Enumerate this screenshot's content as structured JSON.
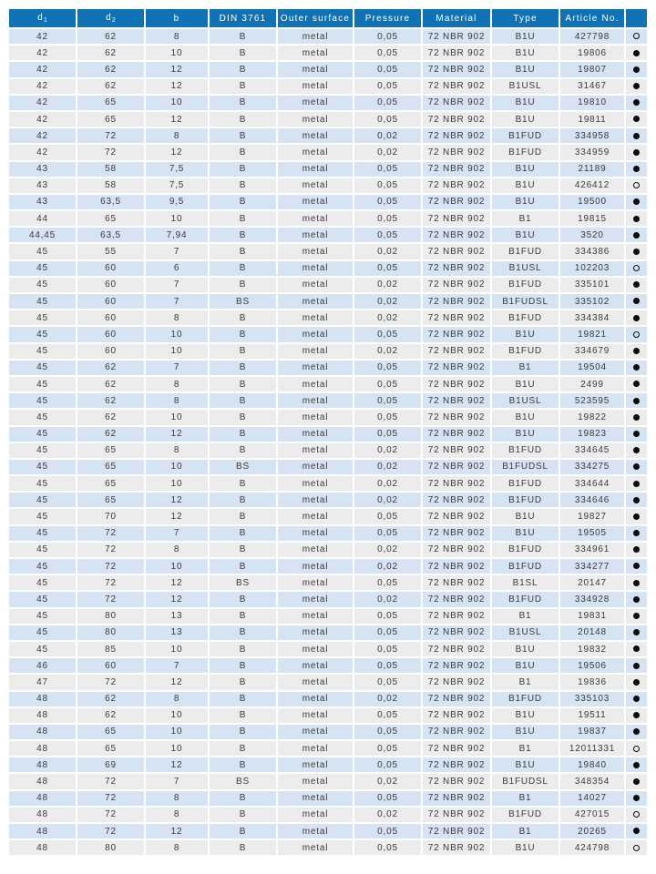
{
  "table": {
    "columns": [
      {
        "key": "d1",
        "label": "d",
        "sub": "1"
      },
      {
        "key": "d2",
        "label": "d",
        "sub": "2"
      },
      {
        "key": "b",
        "label": "b"
      },
      {
        "key": "din",
        "label": "DIN 3761"
      },
      {
        "key": "outer_surface",
        "label": "Outer surface"
      },
      {
        "key": "pressure",
        "label": "Pressure"
      },
      {
        "key": "material",
        "label": "Material"
      },
      {
        "key": "type",
        "label": "Type"
      },
      {
        "key": "article_no",
        "label": "Article No."
      },
      {
        "key": "availability",
        "label": ""
      }
    ],
    "rows": [
      {
        "cells": [
          "42",
          "62",
          "8",
          "B",
          "metal",
          "0,05",
          "72 NBR 902",
          "B1U",
          "427798"
        ],
        "dot": "empty"
      },
      {
        "cells": [
          "42",
          "62",
          "10",
          "B",
          "metal",
          "0,05",
          "72 NBR 902",
          "B1U",
          "19806"
        ],
        "dot": "filled"
      },
      {
        "cells": [
          "42",
          "62",
          "12",
          "B",
          "metal",
          "0,05",
          "72 NBR 902",
          "B1U",
          "19807"
        ],
        "dot": "filled"
      },
      {
        "cells": [
          "42",
          "62",
          "12",
          "B",
          "metal",
          "0,05",
          "72 NBR 902",
          "B1USL",
          "31467"
        ],
        "dot": "filled"
      },
      {
        "cells": [
          "42",
          "65",
          "10",
          "B",
          "metal",
          "0,05",
          "72 NBR 902",
          "B1U",
          "19810"
        ],
        "dot": "filled"
      },
      {
        "cells": [
          "42",
          "65",
          "12",
          "B",
          "metal",
          "0,05",
          "72 NBR 902",
          "B1U",
          "19811"
        ],
        "dot": "filled"
      },
      {
        "cells": [
          "42",
          "72",
          "8",
          "B",
          "metal",
          "0,02",
          "72 NBR 902",
          "B1FUD",
          "334958"
        ],
        "dot": "filled"
      },
      {
        "cells": [
          "42",
          "72",
          "12",
          "B",
          "metal",
          "0,02",
          "72 NBR 902",
          "B1FUD",
          "334959"
        ],
        "dot": "filled"
      },
      {
        "cells": [
          "43",
          "58",
          "7,5",
          "B",
          "metal",
          "0,05",
          "72 NBR 902",
          "B1U",
          "21189"
        ],
        "dot": "filled"
      },
      {
        "cells": [
          "43",
          "58",
          "7,5",
          "B",
          "metal",
          "0,05",
          "72 NBR 902",
          "B1U",
          "426412"
        ],
        "dot": "empty"
      },
      {
        "cells": [
          "43",
          "63,5",
          "9,5",
          "B",
          "metal",
          "0,05",
          "72 NBR 902",
          "B1U",
          "19500"
        ],
        "dot": "filled"
      },
      {
        "cells": [
          "44",
          "65",
          "10",
          "B",
          "metal",
          "0,05",
          "72 NBR 902",
          "B1",
          "19815"
        ],
        "dot": "filled"
      },
      {
        "cells": [
          "44,45",
          "63,5",
          "7,94",
          "B",
          "metal",
          "0,05",
          "72 NBR 902",
          "B1U",
          "3520"
        ],
        "dot": "filled"
      },
      {
        "cells": [
          "45",
          "55",
          "7",
          "B",
          "metal",
          "0,02",
          "72 NBR 902",
          "B1FUD",
          "334386"
        ],
        "dot": "filled"
      },
      {
        "cells": [
          "45",
          "60",
          "6",
          "B",
          "metal",
          "0,05",
          "72 NBR 902",
          "B1USL",
          "102203"
        ],
        "dot": "empty"
      },
      {
        "cells": [
          "45",
          "60",
          "7",
          "B",
          "metal",
          "0,02",
          "72 NBR 902",
          "B1FUD",
          "335101"
        ],
        "dot": "filled"
      },
      {
        "cells": [
          "45",
          "60",
          "7",
          "BS",
          "metal",
          "0,02",
          "72 NBR 902",
          "B1FUDSL",
          "335102"
        ],
        "dot": "filled"
      },
      {
        "cells": [
          "45",
          "60",
          "8",
          "B",
          "metal",
          "0,02",
          "72 NBR 902",
          "B1FUD",
          "334384"
        ],
        "dot": "filled"
      },
      {
        "cells": [
          "45",
          "60",
          "10",
          "B",
          "metal",
          "0,05",
          "72 NBR 902",
          "B1U",
          "19821"
        ],
        "dot": "empty"
      },
      {
        "cells": [
          "45",
          "60",
          "10",
          "B",
          "metal",
          "0,02",
          "72 NBR 902",
          "B1FUD",
          "334679"
        ],
        "dot": "filled"
      },
      {
        "cells": [
          "45",
          "62",
          "7",
          "B",
          "metal",
          "0,05",
          "72 NBR 902",
          "B1",
          "19504"
        ],
        "dot": "filled"
      },
      {
        "cells": [
          "45",
          "62",
          "8",
          "B",
          "metal",
          "0,05",
          "72 NBR 902",
          "B1U",
          "2499"
        ],
        "dot": "filled"
      },
      {
        "cells": [
          "45",
          "62",
          "8",
          "B",
          "metal",
          "0,05",
          "72 NBR 902",
          "B1USL",
          "523595"
        ],
        "dot": "filled"
      },
      {
        "cells": [
          "45",
          "62",
          "10",
          "B",
          "metal",
          "0,05",
          "72 NBR 902",
          "B1U",
          "19822"
        ],
        "dot": "filled"
      },
      {
        "cells": [
          "45",
          "62",
          "12",
          "B",
          "metal",
          "0,05",
          "72 NBR 902",
          "B1U",
          "19823"
        ],
        "dot": "filled"
      },
      {
        "cells": [
          "45",
          "65",
          "8",
          "B",
          "metal",
          "0,02",
          "72 NBR 902",
          "B1FUD",
          "334645"
        ],
        "dot": "filled"
      },
      {
        "cells": [
          "45",
          "65",
          "10",
          "BS",
          "metal",
          "0,02",
          "72 NBR 902",
          "B1FUDSL",
          "334275"
        ],
        "dot": "filled"
      },
      {
        "cells": [
          "45",
          "65",
          "10",
          "B",
          "metal",
          "0,02",
          "72 NBR 902",
          "B1FUD",
          "334644"
        ],
        "dot": "filled"
      },
      {
        "cells": [
          "45",
          "65",
          "12",
          "B",
          "metal",
          "0,02",
          "72 NBR 902",
          "B1FUD",
          "334646"
        ],
        "dot": "filled"
      },
      {
        "cells": [
          "45",
          "70",
          "12",
          "B",
          "metal",
          "0,05",
          "72 NBR 902",
          "B1U",
          "19827"
        ],
        "dot": "filled"
      },
      {
        "cells": [
          "45",
          "72",
          "7",
          "B",
          "metal",
          "0,05",
          "72 NBR 902",
          "B1U",
          "19505"
        ],
        "dot": "filled"
      },
      {
        "cells": [
          "45",
          "72",
          "8",
          "B",
          "metal",
          "0,02",
          "72 NBR 902",
          "B1FUD",
          "334961"
        ],
        "dot": "filled"
      },
      {
        "cells": [
          "45",
          "72",
          "10",
          "B",
          "metal",
          "0,02",
          "72 NBR 902",
          "B1FUD",
          "334277"
        ],
        "dot": "filled"
      },
      {
        "cells": [
          "45",
          "72",
          "12",
          "BS",
          "metal",
          "0,05",
          "72 NBR 902",
          "B1SL",
          "20147"
        ],
        "dot": "filled"
      },
      {
        "cells": [
          "45",
          "72",
          "12",
          "B",
          "metal",
          "0,02",
          "72 NBR 902",
          "B1FUD",
          "334928"
        ],
        "dot": "filled"
      },
      {
        "cells": [
          "45",
          "80",
          "13",
          "B",
          "metal",
          "0,05",
          "72 NBR 902",
          "B1",
          "19831"
        ],
        "dot": "filled"
      },
      {
        "cells": [
          "45",
          "80",
          "13",
          "B",
          "metal",
          "0,05",
          "72 NBR 902",
          "B1USL",
          "20148"
        ],
        "dot": "filled"
      },
      {
        "cells": [
          "45",
          "85",
          "10",
          "B",
          "metal",
          "0,05",
          "72 NBR 902",
          "B1U",
          "19832"
        ],
        "dot": "filled"
      },
      {
        "cells": [
          "46",
          "60",
          "7",
          "B",
          "metal",
          "0,05",
          "72 NBR 902",
          "B1U",
          "19506"
        ],
        "dot": "filled"
      },
      {
        "cells": [
          "47",
          "72",
          "12",
          "B",
          "metal",
          "0,05",
          "72 NBR 902",
          "B1",
          "19836"
        ],
        "dot": "filled"
      },
      {
        "cells": [
          "48",
          "62",
          "8",
          "B",
          "metal",
          "0,02",
          "72 NBR 902",
          "B1FUD",
          "335103"
        ],
        "dot": "filled"
      },
      {
        "cells": [
          "48",
          "62",
          "10",
          "B",
          "metal",
          "0,05",
          "72 NBR 902",
          "B1U",
          "19511"
        ],
        "dot": "filled"
      },
      {
        "cells": [
          "48",
          "65",
          "10",
          "B",
          "metal",
          "0,05",
          "72 NBR 902",
          "B1U",
          "19837"
        ],
        "dot": "filled"
      },
      {
        "cells": [
          "48",
          "65",
          "10",
          "B",
          "metal",
          "0,05",
          "72 NBR 902",
          "B1",
          "12011331"
        ],
        "dot": "empty"
      },
      {
        "cells": [
          "48",
          "69",
          "12",
          "B",
          "metal",
          "0,05",
          "72 NBR 902",
          "B1U",
          "19840"
        ],
        "dot": "filled"
      },
      {
        "cells": [
          "48",
          "72",
          "7",
          "BS",
          "metal",
          "0,02",
          "72 NBR 902",
          "B1FUDSL",
          "348354"
        ],
        "dot": "filled"
      },
      {
        "cells": [
          "48",
          "72",
          "8",
          "B",
          "metal",
          "0,05",
          "72 NBR 902",
          "B1",
          "14027"
        ],
        "dot": "filled"
      },
      {
        "cells": [
          "48",
          "72",
          "8",
          "B",
          "metal",
          "0,02",
          "72 NBR 902",
          "B1FUD",
          "427015"
        ],
        "dot": "empty"
      },
      {
        "cells": [
          "48",
          "72",
          "12",
          "B",
          "metal",
          "0,05",
          "72 NBR 902",
          "B1",
          "20265"
        ],
        "dot": "filled"
      },
      {
        "cells": [
          "48",
          "80",
          "8",
          "B",
          "metal",
          "0,05",
          "72 NBR 902",
          "B1U",
          "424798"
        ],
        "dot": "empty"
      }
    ]
  },
  "colors": {
    "header_bg": "#0e72b5",
    "header_text": "#ffffff",
    "row_blue": "#d5e3f2",
    "row_gray": "#ececec",
    "cell_text": "#3b3b3b",
    "dot": "#0a0a0a",
    "page_bg": "#ffffff"
  }
}
